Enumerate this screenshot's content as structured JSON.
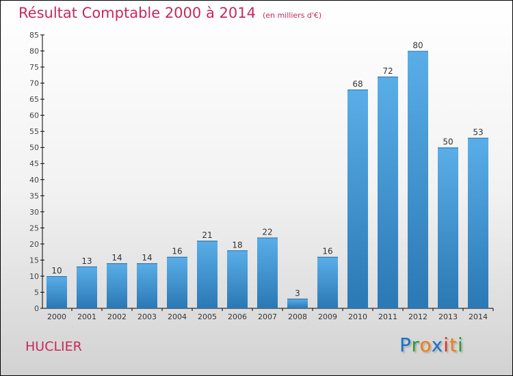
{
  "chart_data": {
    "type": "bar",
    "title": "Résultat Comptable 2000 à 2014",
    "subtitle": "(en milliers d'€)",
    "xlabel": "",
    "ylabel": "",
    "categories": [
      "2000",
      "2001",
      "2002",
      "2003",
      "2004",
      "2005",
      "2006",
      "2007",
      "2008",
      "2009",
      "2010",
      "2011",
      "2012",
      "2013",
      "2014"
    ],
    "values": [
      10,
      13,
      14,
      14,
      16,
      21,
      18,
      22,
      3,
      16,
      68,
      72,
      80,
      50,
      53
    ],
    "ylim": [
      0,
      85
    ],
    "yticks": [
      0,
      5,
      10,
      15,
      20,
      25,
      30,
      35,
      40,
      45,
      50,
      55,
      60,
      65,
      70,
      75,
      80,
      85
    ],
    "grid": false,
    "bar_color_top": "#5aaee8",
    "bar_color_bottom": "#2a78b4",
    "title_color": "#c8285a"
  },
  "commune": "HUCLIER",
  "logo": {
    "letters": [
      "P",
      "r",
      "o",
      "x",
      "i",
      "t",
      "i"
    ],
    "colors": [
      "#1a73c8",
      "#2a9a3a",
      "#f07f10",
      "#1a73c8",
      "#e03020",
      "#f07f10",
      "#2a9a3a"
    ]
  }
}
